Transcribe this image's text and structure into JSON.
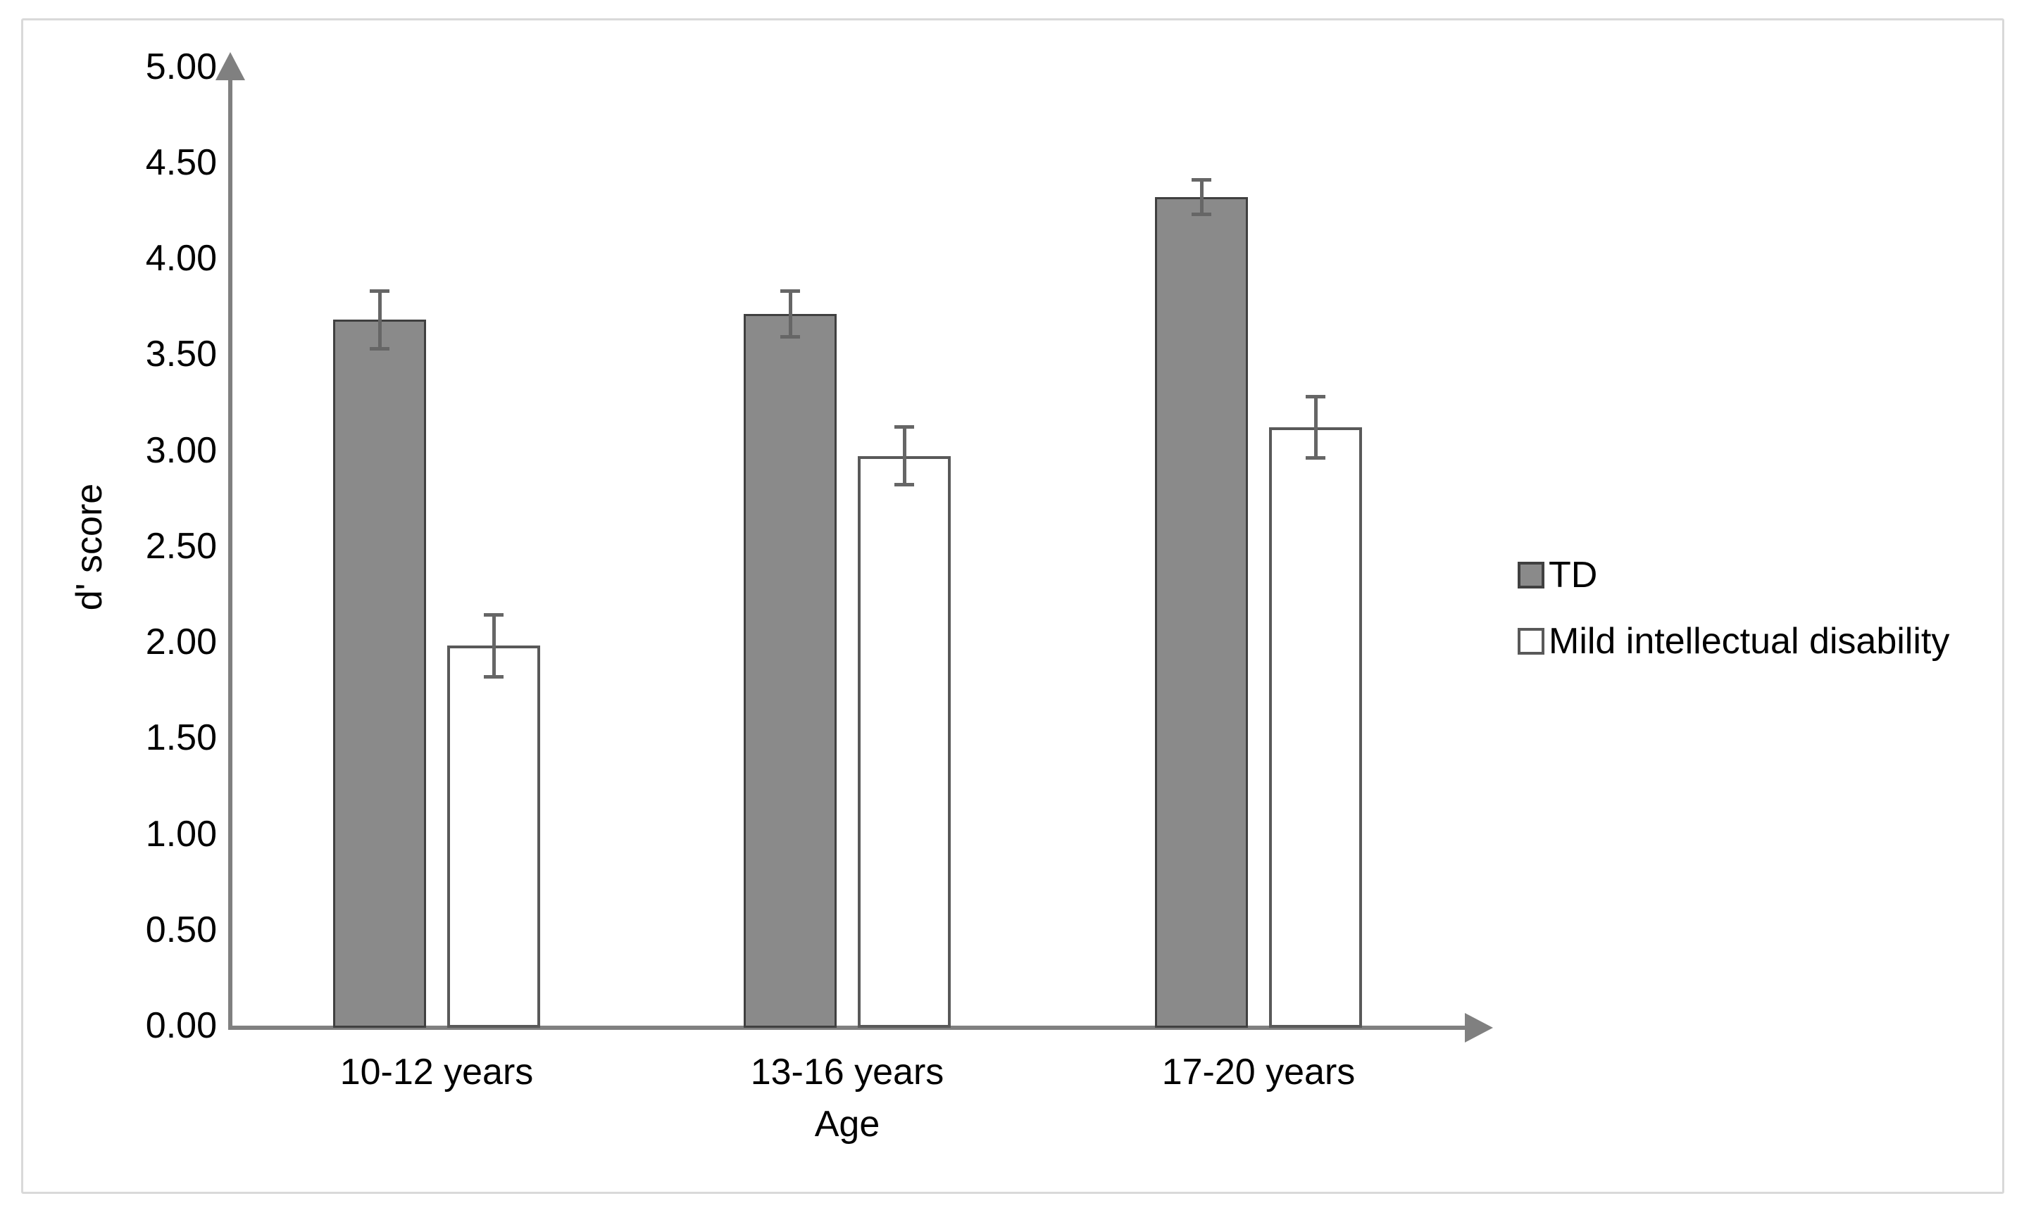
{
  "figure": {
    "background": "#ffffff",
    "frame_border_color": "#d9d9d9"
  },
  "chart_data": {
    "type": "bar",
    "title": "",
    "xlabel": "Age",
    "ylabel": "d' score",
    "categories": [
      "10-12 years",
      "13-16 years",
      "17-20 years"
    ],
    "series": [
      {
        "name": "TD",
        "values": [
          3.68,
          3.71,
          4.32
        ],
        "errors": [
          0.15,
          0.12,
          0.09
        ],
        "fill": "#8a8a8a",
        "border": "#404040"
      },
      {
        "name": "Mild intellectual disability",
        "values": [
          1.98,
          2.97,
          3.12
        ],
        "errors": [
          0.16,
          0.15,
          0.16
        ],
        "fill": "#ffffff",
        "border": "#595959"
      }
    ],
    "ylim": [
      0,
      5
    ],
    "ytick_step": 0.5,
    "ytick_labels": [
      "0.00",
      "0.50",
      "1.00",
      "1.50",
      "2.00",
      "2.50",
      "3.00",
      "3.50",
      "4.00",
      "4.50",
      "5.00"
    ],
    "grid": false,
    "legend_position": "right",
    "error_bars": true,
    "axis_color": "#808080",
    "error_bar_color": "#666666",
    "text_color": "#000000"
  }
}
